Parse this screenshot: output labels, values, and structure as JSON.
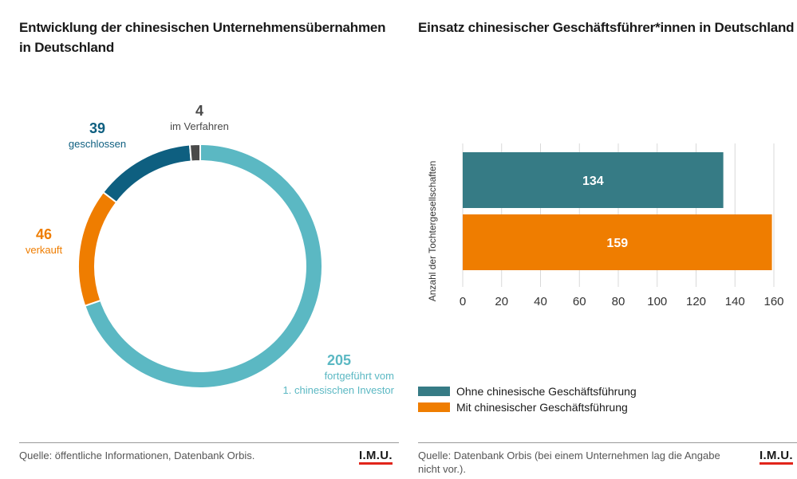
{
  "left_panel": {
    "title": "Entwicklung der chinesischen Unternehmensübernahmen in Deutschland",
    "source": "Quelle: öffentliche Informationen, Datenbank Orbis.",
    "logo": "I.M.U."
  },
  "right_panel": {
    "title": "Einsatz chinesischer Geschäftsführer*innen in Deutschland",
    "source_line1": "Quelle: Datenbank Orbis (bei einem Unternehmen lag die Angabe",
    "source_line2": "nicht vor.).",
    "logo": "I.M.U."
  },
  "chart_data": [
    {
      "type": "pie",
      "donut": true,
      "title": "Entwicklung der chinesischen Unternehmensübernahmen in Deutschland",
      "slices": [
        {
          "label_line1": "fortgeführt vom",
          "label_line2": "1. chinesischen Investor",
          "value": 205,
          "color": "#5bb8c3"
        },
        {
          "label_line1": "verkauft",
          "label_line2": "",
          "value": 46,
          "color": "#ef7d00"
        },
        {
          "label_line1": "geschlossen",
          "label_line2": "",
          "value": 39,
          "color": "#0e5f80"
        },
        {
          "label_line1": "im Verfahren",
          "label_line2": "",
          "value": 4,
          "color": "#4a4a4a"
        }
      ]
    },
    {
      "type": "bar",
      "orientation": "horizontal",
      "title": "Einsatz chinesischer Geschäftsführer*innen in Deutschland",
      "ylabel": "Anzahl der Tochtergesellschaften",
      "xlim": [
        0,
        160
      ],
      "xticks": [
        "0",
        "20",
        "40",
        "60",
        "80",
        "100",
        "120",
        "140",
        "160"
      ],
      "grid": true,
      "legend_position": "bottom-left",
      "series": [
        {
          "name": "Ohne chinesische Geschäftsführung",
          "value": 134,
          "color": "#367b85"
        },
        {
          "name": "Mit chinesischer Geschäftsführung",
          "value": 159,
          "color": "#ef7d00"
        }
      ]
    }
  ]
}
